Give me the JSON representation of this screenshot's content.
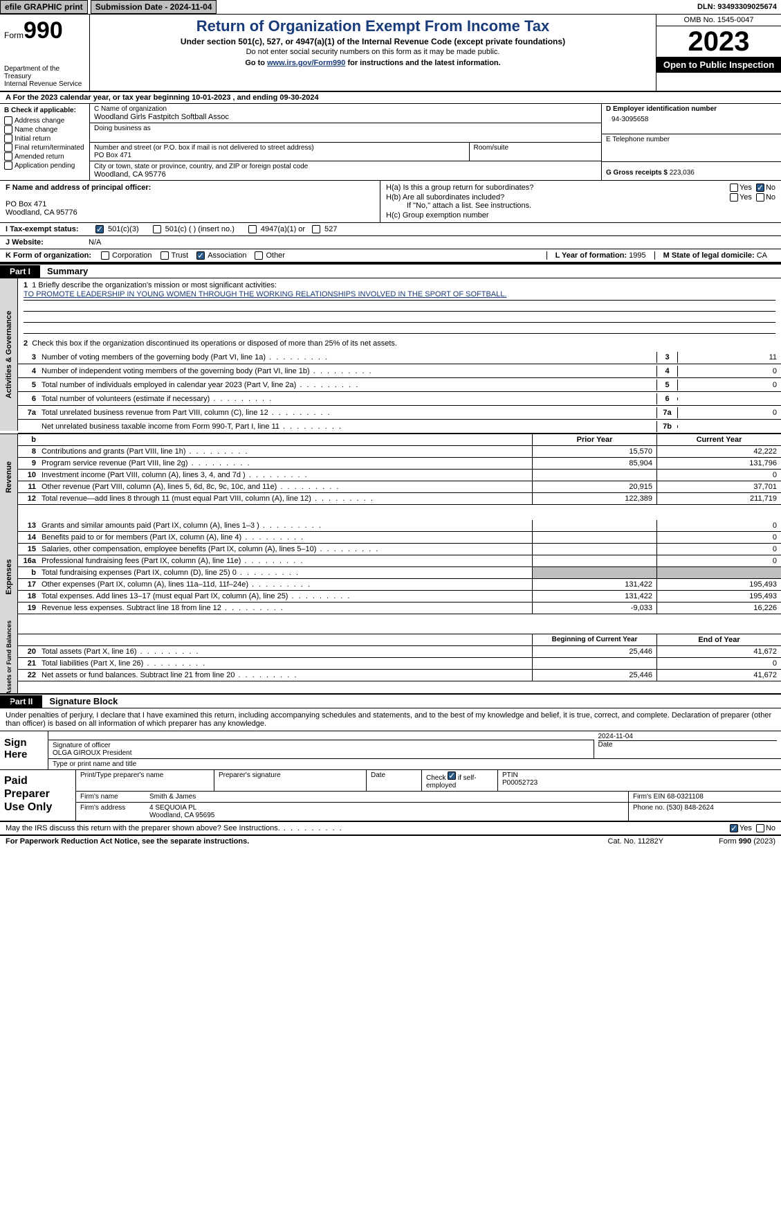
{
  "topbar": {
    "btn1": "efile GRAPHIC print",
    "btn2": "Submission Date - 2024-11-04",
    "dln": "DLN: 93493309025674"
  },
  "header": {
    "form_prefix": "Form",
    "form_no": "990",
    "dept": "Department of the Treasury\nInternal Revenue Service",
    "title": "Return of Organization Exempt From Income Tax",
    "sub1": "Under section 501(c), 527, or 4947(a)(1) of the Internal Revenue Code (except private foundations)",
    "sub2": "Do not enter social security numbers on this form as it may be made public.",
    "sub3_pre": "Go to ",
    "sub3_link": "www.irs.gov/Form990",
    "sub3_post": " for instructions and the latest information.",
    "omb": "OMB No. 1545-0047",
    "year": "2023",
    "open": "Open to Public Inspection"
  },
  "line_a": "A For the 2023 calendar year, or tax year beginning 10-01-2023    , and ending 09-30-2024",
  "col_b": {
    "hdr": "B Check if applicable:",
    "items": [
      "Address change",
      "Name change",
      "Initial return",
      "Final return/terminated",
      "Amended return",
      "Application pending"
    ]
  },
  "col_c": {
    "name_lbl": "C Name of organization",
    "name": "Woodland Girls Fastpitch Softball Assoc",
    "dba_lbl": "Doing business as",
    "dba": "",
    "addr_lbl": "Number and street (or P.O. box if mail is not delivered to street address)",
    "addr": "PO Box 471",
    "room_lbl": "Room/suite",
    "city_lbl": "City or town, state or province, country, and ZIP or foreign postal code",
    "city": "Woodland, CA  95776"
  },
  "col_d": {
    "ein_lbl": "D Employer identification number",
    "ein": "94-3095658",
    "tel_lbl": "E Telephone number",
    "tel": "",
    "gross_lbl": "G Gross receipts $ ",
    "gross": "223,036"
  },
  "block_fh": {
    "f_lbl": "F  Name and address of principal officer:",
    "f_addr1": "PO Box 471",
    "f_addr2": "Woodland, CA  95776",
    "ha": "H(a)  Is this a group return for subordinates?",
    "hb": "H(b)  Are all subordinates included?",
    "hb_note": "If \"No,\" attach a list. See instructions.",
    "hc": "H(c)  Group exemption number",
    "yes": "Yes",
    "no": "No"
  },
  "line_i": {
    "lab": "I  Tax-exempt status:",
    "o1": "501(c)(3)",
    "o2": "501(c) (  ) (insert no.)",
    "o3": "4947(a)(1) or",
    "o4": "527"
  },
  "line_j": {
    "lab": "J  Website:",
    "val": "N/A"
  },
  "line_k": {
    "lab": "K Form of organization:",
    "o1": "Corporation",
    "o2": "Trust",
    "o3": "Association",
    "o4": "Other",
    "l_lbl": "L Year of formation: ",
    "l_val": "1995",
    "m_lbl": "M State of legal domicile: ",
    "m_val": "CA"
  },
  "part1": {
    "tag": "Part I",
    "title": "Summary"
  },
  "sec_gov": {
    "vtab": "Activities & Governance",
    "q1_lbl": "1  Briefly describe the organization's mission or most significant activities:",
    "q1_val": "TO PROMOTE LEADERSHIP IN YOUNG WOMEN THROUGH THE WORKING RELATIONSHIPS INVOLVED IN THE SPORT OF SOFTBALL.",
    "q2": "Check this box        if the organization discontinued its operations or disposed of more than 25% of its net assets.",
    "rows": [
      {
        "n": "3",
        "t": "Number of voting members of the governing body (Part VI, line 1a)",
        "b": "3",
        "v": "11"
      },
      {
        "n": "4",
        "t": "Number of independent voting members of the governing body (Part VI, line 1b)",
        "b": "4",
        "v": "0"
      },
      {
        "n": "5",
        "t": "Total number of individuals employed in calendar year 2023 (Part V, line 2a)",
        "b": "5",
        "v": "0"
      },
      {
        "n": "6",
        "t": "Total number of volunteers (estimate if necessary)",
        "b": "6",
        "v": ""
      },
      {
        "n": "7a",
        "t": "Total unrelated business revenue from Part VIII, column (C), line 12",
        "b": "7a",
        "v": "0"
      },
      {
        "n": "",
        "t": "Net unrelated business taxable income from Form 990-T, Part I, line 11",
        "b": "7b",
        "v": ""
      }
    ]
  },
  "sec_rev": {
    "vtab": "Revenue",
    "hdr_b": "b",
    "col_prior": "Prior Year",
    "col_curr": "Current Year",
    "rows": [
      {
        "n": "8",
        "t": "Contributions and grants (Part VIII, line 1h)",
        "p": "15,570",
        "c": "42,222"
      },
      {
        "n": "9",
        "t": "Program service revenue (Part VIII, line 2g)",
        "p": "85,904",
        "c": "131,796"
      },
      {
        "n": "10",
        "t": "Investment income (Part VIII, column (A), lines 3, 4, and 7d )",
        "p": "",
        "c": "0"
      },
      {
        "n": "11",
        "t": "Other revenue (Part VIII, column (A), lines 5, 6d, 8c, 9c, 10c, and 11e)",
        "p": "20,915",
        "c": "37,701"
      },
      {
        "n": "12",
        "t": "Total revenue—add lines 8 through 11 (must equal Part VIII, column (A), line 12)",
        "p": "122,389",
        "c": "211,719"
      }
    ]
  },
  "sec_exp": {
    "vtab": "Expenses",
    "rows": [
      {
        "n": "13",
        "t": "Grants and similar amounts paid (Part IX, column (A), lines 1–3 )",
        "p": "",
        "c": "0"
      },
      {
        "n": "14",
        "t": "Benefits paid to or for members (Part IX, column (A), line 4)",
        "p": "",
        "c": "0"
      },
      {
        "n": "15",
        "t": "Salaries, other compensation, employee benefits (Part IX, column (A), lines 5–10)",
        "p": "",
        "c": "0"
      },
      {
        "n": "16a",
        "t": "Professional fundraising fees (Part IX, column (A), line 11e)",
        "p": "",
        "c": "0"
      },
      {
        "n": "b",
        "t": "Total fundraising expenses (Part IX, column (D), line 25) 0",
        "p": "GRAY",
        "c": "GRAY"
      },
      {
        "n": "17",
        "t": "Other expenses (Part IX, column (A), lines 11a–11d, 11f–24e)",
        "p": "131,422",
        "c": "195,493"
      },
      {
        "n": "18",
        "t": "Total expenses. Add lines 13–17 (must equal Part IX, column (A), line 25)",
        "p": "131,422",
        "c": "195,493"
      },
      {
        "n": "19",
        "t": "Revenue less expenses. Subtract line 18 from line 12",
        "p": "-9,033",
        "c": "16,226"
      }
    ]
  },
  "sec_net": {
    "vtab": "Net Assets or Fund Balances",
    "col_beg": "Beginning of Current Year",
    "col_end": "End of Year",
    "rows": [
      {
        "n": "20",
        "t": "Total assets (Part X, line 16)",
        "p": "25,446",
        "c": "41,672"
      },
      {
        "n": "21",
        "t": "Total liabilities (Part X, line 26)",
        "p": "",
        "c": "0"
      },
      {
        "n": "22",
        "t": "Net assets or fund balances. Subtract line 21 from line 20",
        "p": "25,446",
        "c": "41,672"
      }
    ]
  },
  "part2": {
    "tag": "Part II",
    "title": "Signature Block"
  },
  "sig_decl": "Under penalties of perjury, I declare that I have examined this return, including accompanying schedules and statements, and to the best of my knowledge and belief, it is true, correct, and complete. Declaration of preparer (other than officer) is based on all information of which preparer has any knowledge.",
  "sign": {
    "left": "Sign Here",
    "sig_lbl": "Signature of officer",
    "name": "OLGA GIROUX President",
    "name_lbl": "Type or print name and title",
    "date_lbl": "Date",
    "date": "2024-11-04"
  },
  "prep": {
    "left": "Paid Preparer Use Only",
    "h1": "Print/Type preparer's name",
    "h2": "Preparer's signature",
    "h3": "Date",
    "h4_pre": "Check ",
    "h4_post": " if self-employed",
    "h5": "PTIN",
    "ptin": "P00052723",
    "firm_lbl": "Firm's name",
    "firm": "Smith & James",
    "ein_lbl": "Firm's EIN ",
    "ein": "68-0321108",
    "addr_lbl": "Firm's address",
    "addr1": "4 SEQUOIA PL",
    "addr2": "Woodland, CA  95695",
    "phone_lbl": "Phone no. ",
    "phone": "(530) 848-2624"
  },
  "may_irs": "May the IRS discuss this return with the preparer shown above? See Instructions.",
  "footer": {
    "f1": "For Paperwork Reduction Act Notice, see the separate instructions.",
    "f2": "Cat. No. 11282Y",
    "f3_pre": "Form ",
    "f3_b": "990",
    "f3_post": " (2023)"
  },
  "colors": {
    "link": "#1a3b7a",
    "gray": "#bfbfbf",
    "black": "#000000"
  }
}
